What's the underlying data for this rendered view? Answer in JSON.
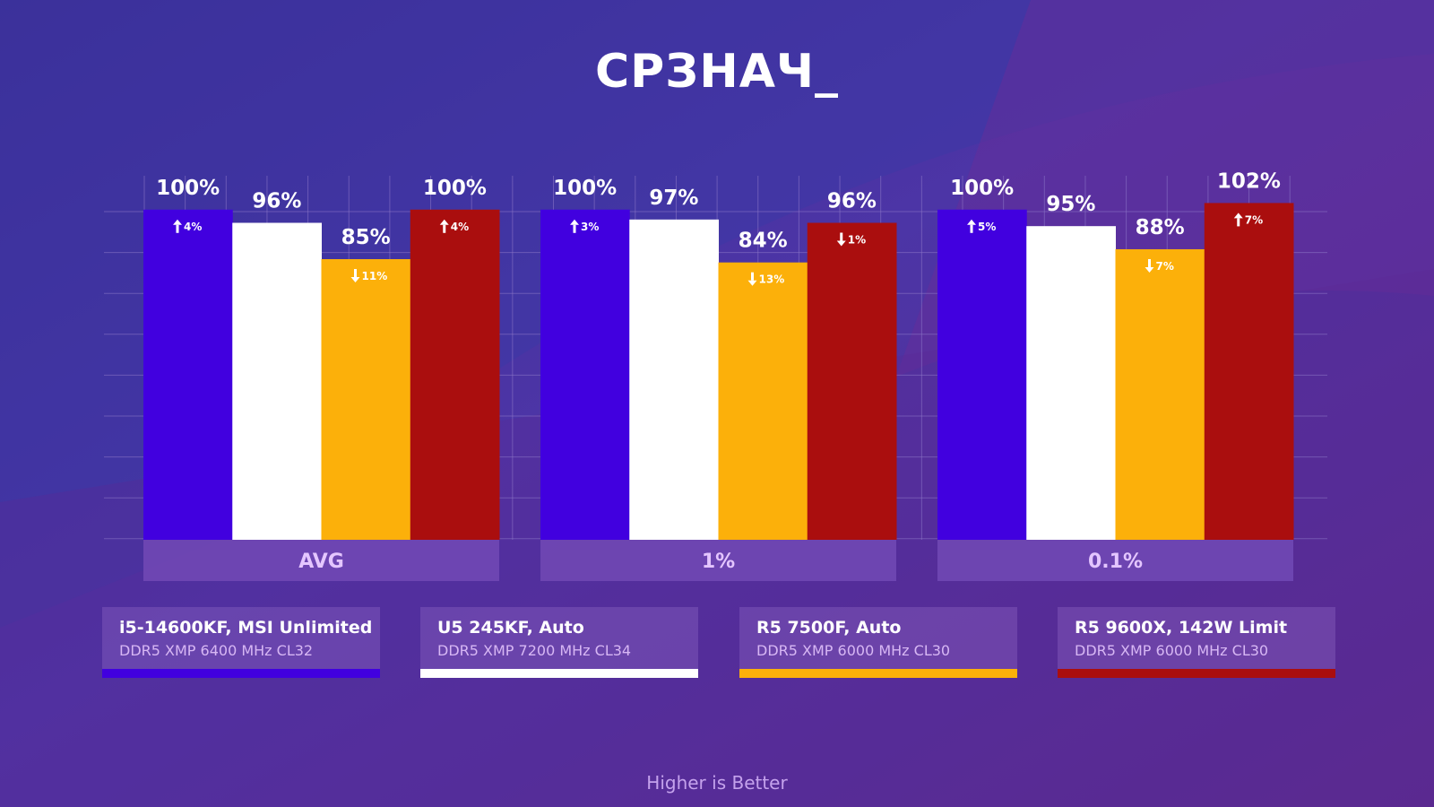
{
  "title": "СРЗНАЧ_",
  "note": "Higher is Better",
  "colors": {
    "background_top": "#3a2f9c",
    "background_bottom": "#5a2a90",
    "grid": "#8e78c8",
    "group_label_bg": "#7048b4",
    "group_label_text": "#e4c6ff"
  },
  "chart_data": {
    "type": "bar",
    "title": "СРЗНАЧ_",
    "ylim": [
      0,
      107
    ],
    "grid": true,
    "categories": [
      "AVG",
      "1%",
      "0.1%"
    ],
    "series": [
      {
        "name": "i5-14600KF, MSI Unlimited",
        "subtitle": "DDR5 XMP 6400 MHz CL32",
        "color": "#4100df",
        "values": [
          100,
          100,
          100
        ],
        "labels": [
          "100%",
          "100%",
          "100%"
        ],
        "deltas": [
          {
            "dir": "up",
            "text": "4%"
          },
          {
            "dir": "up",
            "text": "3%"
          },
          {
            "dir": "up",
            "text": "5%"
          }
        ]
      },
      {
        "name": "U5 245KF, Auto",
        "subtitle": "DDR5 XMP 7200 MHz CL34",
        "color": "#ffffff",
        "values": [
          96,
          97,
          95
        ],
        "labels": [
          "96%",
          "97%",
          "95%"
        ],
        "deltas": [
          null,
          null,
          null
        ]
      },
      {
        "name": "R5 7500F, Auto",
        "subtitle": "DDR5 XMP 6000 MHz CL30",
        "color": "#fcb00a",
        "values": [
          85,
          84,
          88
        ],
        "labels": [
          "85%",
          "84%",
          "88%"
        ],
        "deltas": [
          {
            "dir": "down",
            "text": "11%"
          },
          {
            "dir": "down",
            "text": "13%"
          },
          {
            "dir": "down",
            "text": "7%"
          }
        ]
      },
      {
        "name": "R5 9600X, 142W Limit",
        "subtitle": "DDR5 XMP 6000 MHz CL30",
        "color": "#aa0e0e",
        "values": [
          100,
          96,
          102
        ],
        "labels": [
          "100%",
          "96%",
          "102%"
        ],
        "deltas": [
          {
            "dir": "up",
            "text": "4%"
          },
          {
            "dir": "down",
            "text": "1%"
          },
          {
            "dir": "up",
            "text": "7%"
          }
        ]
      }
    ]
  }
}
